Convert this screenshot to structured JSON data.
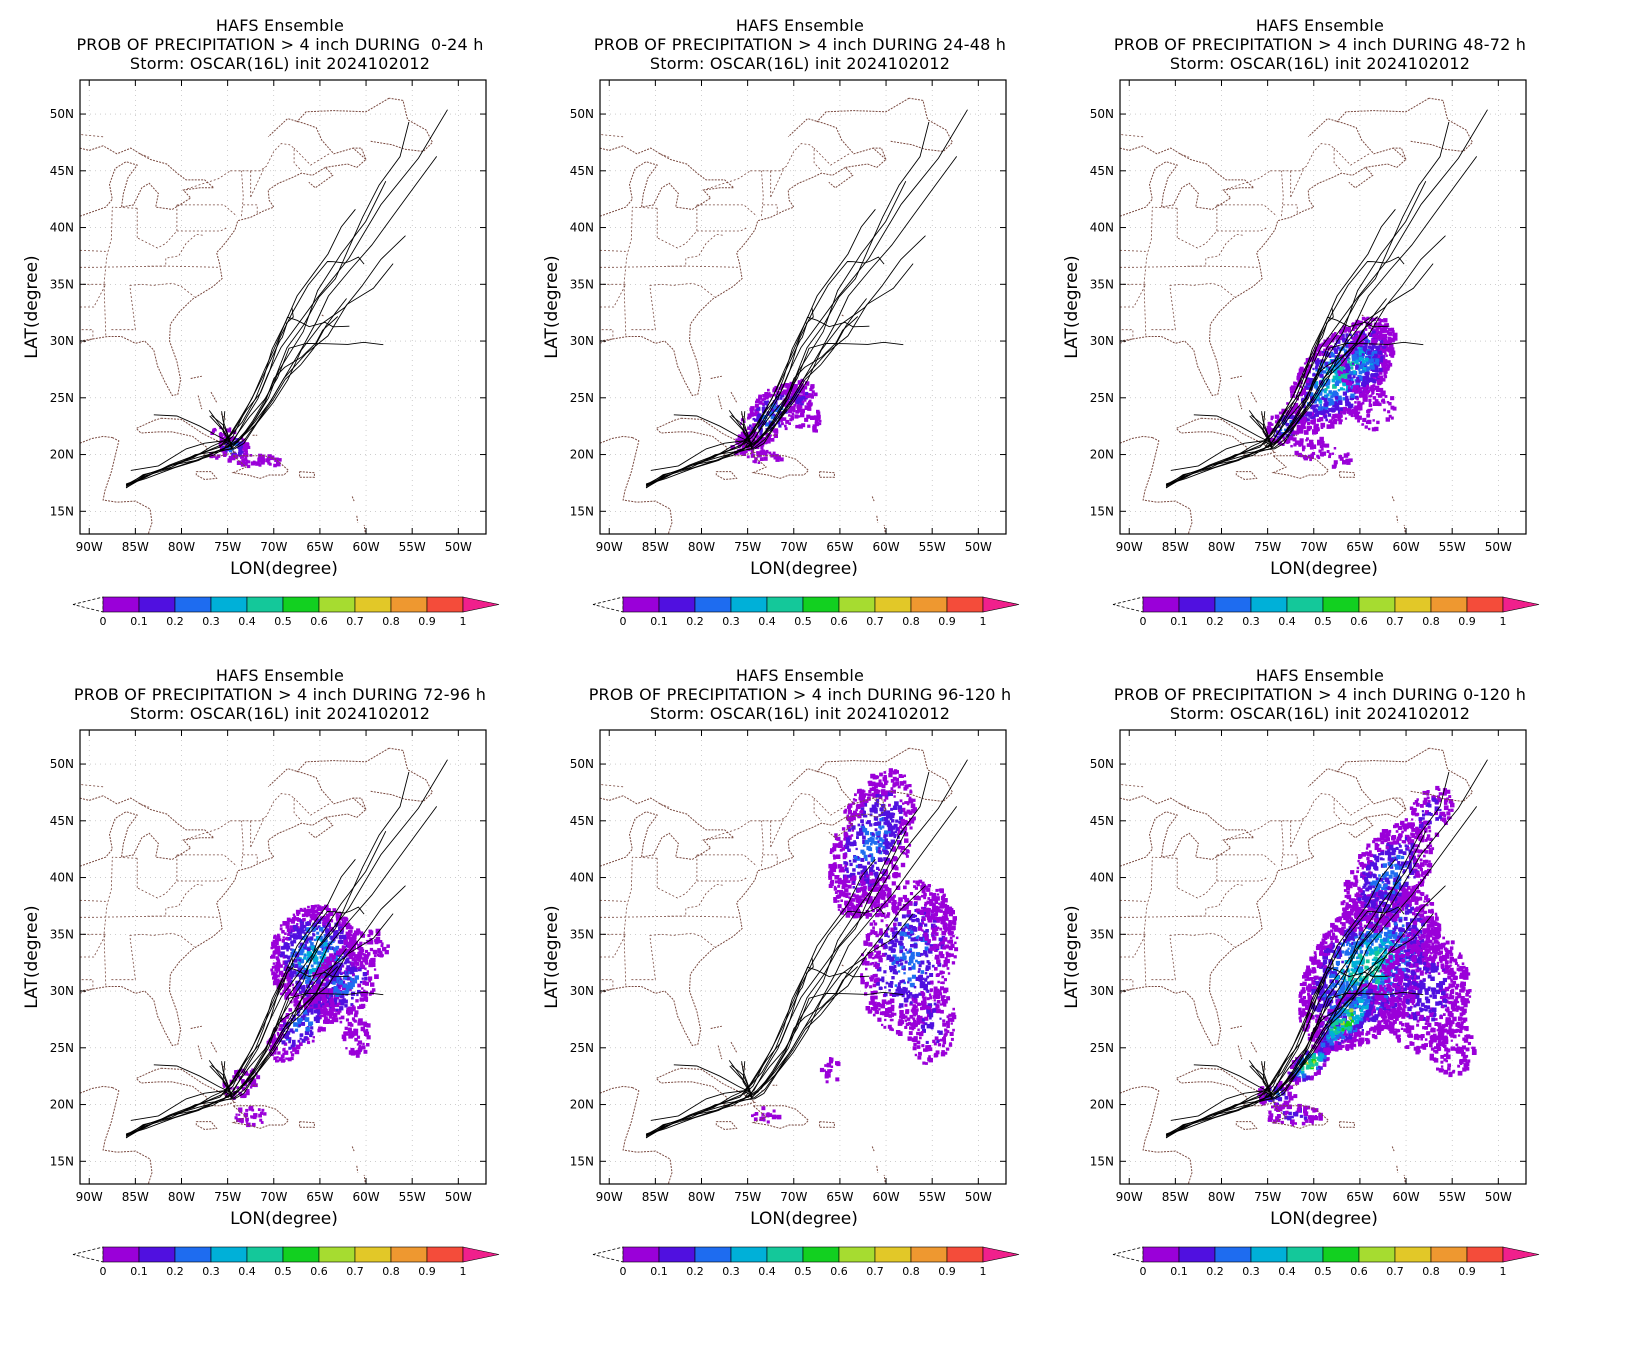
{
  "figure": {
    "panels": [
      {
        "title_lines": [
          "HAFS Ensemble",
          "PROB OF PRECIPITATION > 4 inch DURING  0-24 h",
          "Storm: OSCAR(16L) init 2024102012"
        ],
        "period": "0-24"
      },
      {
        "title_lines": [
          "HAFS Ensemble",
          "PROB OF PRECIPITATION > 4 inch DURING 24-48 h",
          "Storm: OSCAR(16L) init 2024102012"
        ],
        "period": "24-48"
      },
      {
        "title_lines": [
          "HAFS Ensemble",
          "PROB OF PRECIPITATION > 4 inch DURING 48-72 h",
          "Storm: OSCAR(16L) init 2024102012"
        ],
        "period": "48-72"
      },
      {
        "title_lines": [
          "HAFS Ensemble",
          "PROB OF PRECIPITATION > 4 inch DURING 72-96 h",
          "Storm: OSCAR(16L) init 2024102012"
        ],
        "period": "72-96"
      },
      {
        "title_lines": [
          "HAFS Ensemble",
          "PROB OF PRECIPITATION > 4 inch DURING 96-120 h",
          "Storm: OSCAR(16L) init 2024102012"
        ],
        "period": "96-120"
      },
      {
        "title_lines": [
          "HAFS Ensemble",
          "PROB OF PRECIPITATION > 4 inch DURING 0-120 h",
          "Storm: OSCAR(16L) init 2024102012"
        ],
        "period": "0-120"
      }
    ]
  },
  "axes": {
    "xlabel": "LON(degree)",
    "ylabel": "LAT(degree)",
    "lon_range": [
      -91,
      -47
    ],
    "lat_range": [
      13,
      53
    ],
    "x_ticks": [
      "90W",
      "85W",
      "80W",
      "75W",
      "70W",
      "65W",
      "60W",
      "55W",
      "50W"
    ],
    "y_ticks": [
      "15N",
      "20N",
      "25N",
      "30N",
      "35N",
      "40N",
      "45N",
      "50N"
    ]
  },
  "colorbar": {
    "labels": [
      "0",
      "0.1",
      "0.2",
      "0.3",
      "0.4",
      "0.5",
      "0.6",
      "0.7",
      "0.8",
      "0.9",
      "1"
    ],
    "colors": [
      "#9a00d9",
      "#5010e0",
      "#1e6cf0",
      "#00b0d8",
      "#14c89a",
      "#12d020",
      "#a6dc30",
      "#e2c828",
      "#ee9830",
      "#f44c3a",
      "#f0208c"
    ]
  },
  "colors": {
    "coast": "#7a4a40",
    "track": "#000000",
    "grid": "#b0b0b0"
  }
}
